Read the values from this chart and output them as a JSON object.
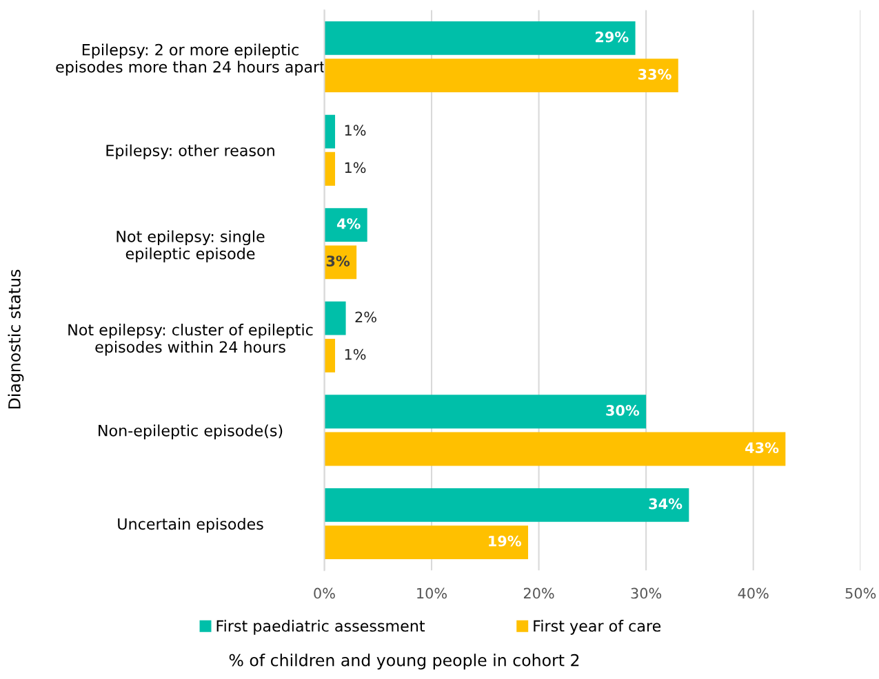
{
  "chart_data": {
    "type": "bar",
    "orientation": "horizontal",
    "categories": [
      "Epilepsy: 2 or more epileptic\nepisodes more than 24 hours apart",
      "Epilepsy: other reason",
      "Not epilepsy: single\nepileptic episode",
      "Not epilepsy: cluster of epileptic\nepisodes within 24 hours",
      "Non-epileptic episode(s)",
      "Uncertain episodes"
    ],
    "series": [
      {
        "name": "First paediatric assessment",
        "color": "#00bfa9",
        "values": [
          29,
          1,
          4,
          2,
          30,
          34
        ],
        "value_labels": [
          "29%",
          "1%",
          "4%",
          "2%",
          "30%",
          "34%"
        ]
      },
      {
        "name": "First year of care",
        "color": "#ffc000",
        "values": [
          33,
          1,
          3,
          1,
          43,
          19
        ],
        "value_labels": [
          "33%",
          "1%",
          "3%",
          "1%",
          "43%",
          "19%"
        ]
      }
    ],
    "xlim": [
      0,
      50
    ],
    "xticks": [
      {
        "value": 0,
        "label": "0%"
      },
      {
        "value": 10,
        "label": "10%"
      },
      {
        "value": 20,
        "label": "20%"
      },
      {
        "value": 30,
        "label": "30%"
      },
      {
        "value": 40,
        "label": "40%"
      },
      {
        "value": 50,
        "label": "50%"
      }
    ],
    "xlabel": "% of children and young people in cohort 2",
    "ylabel": "Diagnostic status",
    "grid": "x",
    "legend": "bottom"
  }
}
